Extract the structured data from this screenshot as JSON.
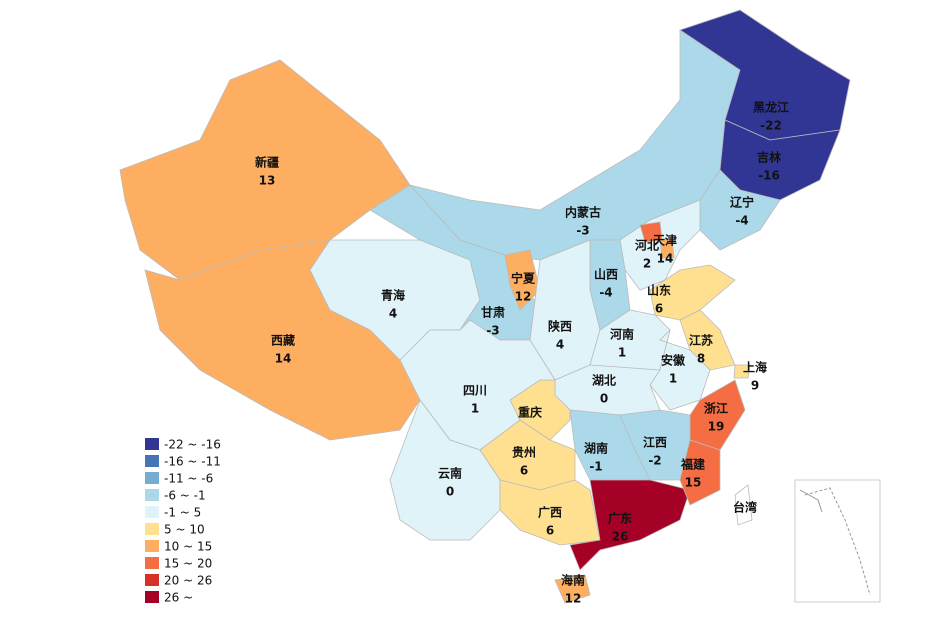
{
  "regions": [
    {
      "name": "新疆",
      "value": 13,
      "color": "#fdae61"
    },
    {
      "name": "西藏",
      "value": 14,
      "color": "#fdae61"
    },
    {
      "name": "青海",
      "value": 4,
      "color": "#e0f3f8"
    },
    {
      "name": "甘肃",
      "value": -3,
      "color": "#abd9e9"
    },
    {
      "name": "内蒙古",
      "value": -3,
      "color": "#abd9e9"
    },
    {
      "name": "黑龙江",
      "value": -22,
      "color": "#313695"
    },
    {
      "name": "吉林",
      "value": -16,
      "color": "#313695"
    },
    {
      "name": "辽宁",
      "value": -4,
      "color": "#abd9e9"
    },
    {
      "name": "河北",
      "value": 2,
      "color": "#e0f3f8"
    },
    {
      "name": "天津",
      "value": 14,
      "color": "#fdae61"
    },
    {
      "name": "山西",
      "value": -4,
      "color": "#abd9e9"
    },
    {
      "name": "宁夏",
      "value": 12,
      "color": "#fdae61"
    },
    {
      "name": "陕西",
      "value": 4,
      "color": "#e0f3f8"
    },
    {
      "name": "山东",
      "value": 6,
      "color": "#fee090"
    },
    {
      "name": "河南",
      "value": 1,
      "color": "#e0f3f8"
    },
    {
      "name": "江苏",
      "value": 8,
      "color": "#fee090"
    },
    {
      "name": "上海",
      "value": 9,
      "color": "#fee090"
    },
    {
      "name": "安徽",
      "value": 1,
      "color": "#e0f3f8"
    },
    {
      "name": "湖北",
      "value": 0,
      "color": "#e0f3f8"
    },
    {
      "name": "重庆",
      "color": "#fee090"
    },
    {
      "name": "四川",
      "value": 1,
      "color": "#e0f3f8"
    },
    {
      "name": "浙江",
      "value": 19,
      "color": "#f46d43"
    },
    {
      "name": "江西",
      "value": -2,
      "color": "#abd9e9"
    },
    {
      "name": "湖南",
      "value": -1,
      "color": "#abd9e9"
    },
    {
      "name": "贵州",
      "value": 6,
      "color": "#fee090"
    },
    {
      "name": "云南",
      "value": 0,
      "color": "#e0f3f8"
    },
    {
      "name": "广西",
      "value": 6,
      "color": "#fee090"
    },
    {
      "name": "广东",
      "value": 26,
      "color": "#a50026"
    },
    {
      "name": "福建",
      "value": 15,
      "color": "#f46d43"
    },
    {
      "name": "海南",
      "value": 12,
      "color": "#fdae61"
    },
    {
      "name": "台湾",
      "color": "#ffffff"
    }
  ],
  "legend": [
    {
      "label": "-22 ~ -16",
      "color": "#313695"
    },
    {
      "label": "-16 ~ -11",
      "color": "#4575b4"
    },
    {
      "label": "-11 ~ -6",
      "color": "#74add1"
    },
    {
      "label": "-6 ~ -1",
      "color": "#abd9e9"
    },
    {
      "label": "-1 ~ 5",
      "color": "#e0f3f8"
    },
    {
      "label": "5 ~ 10",
      "color": "#fee090"
    },
    {
      "label": "10 ~ 15",
      "color": "#fdae61"
    },
    {
      "label": "15 ~ 20",
      "color": "#f46d43"
    },
    {
      "label": "20 ~ 26",
      "color": "#d73027"
    },
    {
      "label": "26 ~",
      "color": "#a50026"
    }
  ]
}
